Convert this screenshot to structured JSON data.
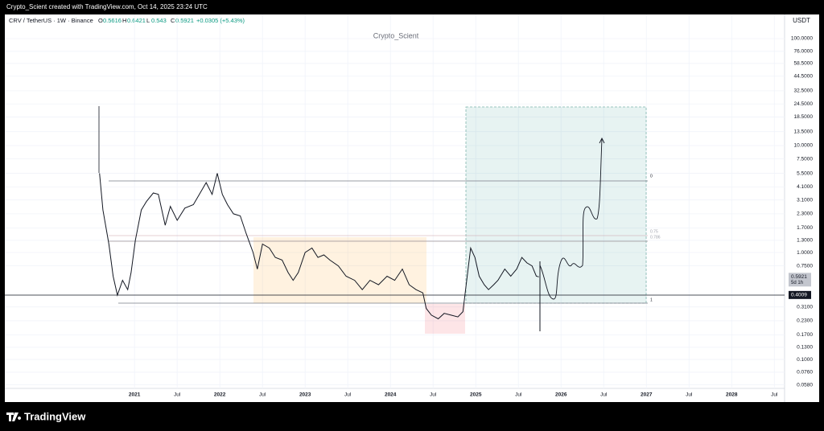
{
  "chart_data": {
    "type": "line",
    "header_text": "Crypto_Scient created with TradingView.com, Oct 14, 2025 23:24 UTC",
    "symbol": "CRV / TetherUS · 1W · Binance",
    "ohlc": [
      {
        "label": "O",
        "value": 0.5616
      },
      {
        "label": "H",
        "value": 0.6421
      },
      {
        "label": "L",
        "value": 0.543
      },
      {
        "label": "C",
        "value": 0.5921
      }
    ],
    "ohlc_texts": [
      "O0.5616",
      "H0.6421",
      "L0.5430",
      "C0.5921"
    ],
    "change": "+0.0305 (+5.43%)",
    "watermark": "Crypto_Scient",
    "currency": "USDT",
    "brand": "TradingView",
    "color": "#131722",
    "log_scale": true,
    "grid": true,
    "x": [
      2020.59,
      2020.63,
      2020.7,
      2020.75,
      2020.8,
      2020.86,
      2020.92,
      2020.96,
      2021.01,
      2021.08,
      2021.14,
      2021.22,
      2021.28,
      2021.36,
      2021.42,
      2021.5,
      2021.59,
      2021.69,
      2021.76,
      2021.84,
      2021.91,
      2021.97,
      2022.03,
      2022.09,
      2022.16,
      2022.24,
      2022.31,
      2022.39,
      2022.44,
      2022.5,
      2022.58,
      2022.65,
      2022.73,
      2022.8,
      2022.86,
      2022.92,
      2023.0,
      2023.08,
      2023.15,
      2023.22,
      2023.29,
      2023.39,
      2023.48,
      2023.58,
      2023.67,
      2023.76,
      2023.86,
      2023.96,
      2024.05,
      2024.14,
      2024.22,
      2024.3,
      2024.38,
      2024.42,
      2024.48,
      2024.56,
      2024.63,
      2024.71,
      2024.79,
      2024.85,
      2024.9,
      2024.94,
      2024.99,
      2025.04,
      2025.1,
      2025.15,
      2025.21,
      2025.26,
      2025.34,
      2025.41,
      2025.48,
      2025.54,
      2025.6,
      2025.66,
      2025.71,
      2025.74
    ],
    "values": [
      5.5,
      2.5,
      1.2,
      0.6,
      0.4,
      0.55,
      0.45,
      0.65,
      1.3,
      2.5,
      3.0,
      3.6,
      3.5,
      1.8,
      2.7,
      2.0,
      2.6,
      2.8,
      3.5,
      4.5,
      3.5,
      5.5,
      3.5,
      2.8,
      2.3,
      2.2,
      1.5,
      1.0,
      0.7,
      1.2,
      1.1,
      0.9,
      0.85,
      0.65,
      0.55,
      0.65,
      1.0,
      1.1,
      0.9,
      0.95,
      0.85,
      0.75,
      0.6,
      0.55,
      0.45,
      0.55,
      0.5,
      0.6,
      0.55,
      0.7,
      0.5,
      0.45,
      0.42,
      0.3,
      0.26,
      0.24,
      0.27,
      0.26,
      0.25,
      0.28,
      0.6,
      1.1,
      0.9,
      0.6,
      0.5,
      0.45,
      0.5,
      0.55,
      0.7,
      0.6,
      0.7,
      0.9,
      0.8,
      0.75,
      0.6,
      0.5921
    ],
    "xlim": [
      2019.48,
      2028.62
    ],
    "xticks": [
      {
        "value": 2021,
        "label": "2021"
      },
      {
        "value": 2021.5,
        "label": "Jul"
      },
      {
        "value": 2022,
        "label": "2022"
      },
      {
        "value": 2022.5,
        "label": "Jul"
      },
      {
        "value": 2023,
        "label": "2023"
      },
      {
        "value": 2023.5,
        "label": "Jul"
      },
      {
        "value": 2024,
        "label": "2024"
      },
      {
        "value": 2024.5,
        "label": "Jul"
      },
      {
        "value": 2025,
        "label": "2025"
      },
      {
        "value": 2025.5,
        "label": "Jul"
      },
      {
        "value": 2026,
        "label": "2026"
      },
      {
        "value": 2026.5,
        "label": "Jul"
      },
      {
        "value": 2027,
        "label": "2027"
      },
      {
        "value": 2027.5,
        "label": "Jul"
      },
      {
        "value": 2028,
        "label": "2028"
      },
      {
        "value": 2028.5,
        "label": "Jul"
      }
    ],
    "ylim": [
      0.04,
      168
    ],
    "yticks": [
      {
        "value": 100,
        "label": "100.0000"
      },
      {
        "value": 76,
        "label": "76.0000"
      },
      {
        "value": 58.5,
        "label": "58.5000"
      },
      {
        "value": 44.5,
        "label": "44.5000"
      },
      {
        "value": 32.5,
        "label": "32.5000"
      },
      {
        "value": 24.5,
        "label": "24.5000"
      },
      {
        "value": 18.5,
        "label": "18.5000"
      },
      {
        "value": 13.5,
        "label": "13.5000"
      },
      {
        "value": 10,
        "label": "10.0000"
      },
      {
        "value": 7.5,
        "label": "7.5000"
      },
      {
        "value": 5.5,
        "label": "5.5000"
      },
      {
        "value": 4.1,
        "label": "4.1000"
      },
      {
        "value": 3.1,
        "label": "3.1000"
      },
      {
        "value": 2.3,
        "label": "2.3000"
      },
      {
        "value": 1.7,
        "label": "1.7000"
      },
      {
        "value": 1.3,
        "label": "1.3000"
      },
      {
        "value": 1,
        "label": "1.0000"
      },
      {
        "value": 0.75,
        "label": "0.7500"
      },
      {
        "value": 0.31,
        "label": "0.3100"
      },
      {
        "value": 0.23,
        "label": "0.2300"
      },
      {
        "value": 0.17,
        "label": "0.1700"
      },
      {
        "value": 0.13,
        "label": "0.1300"
      },
      {
        "value": 0.1,
        "label": "0.1000"
      },
      {
        "value": 0.076,
        "label": "0.0760"
      },
      {
        "value": 0.058,
        "label": "0.0580"
      }
    ],
    "last_price": 0.5921,
    "countdown": "5d 1h",
    "level": 0.4009,
    "fib_labels": [
      "0",
      "0.75",
      "0.786",
      "1"
    ]
  }
}
